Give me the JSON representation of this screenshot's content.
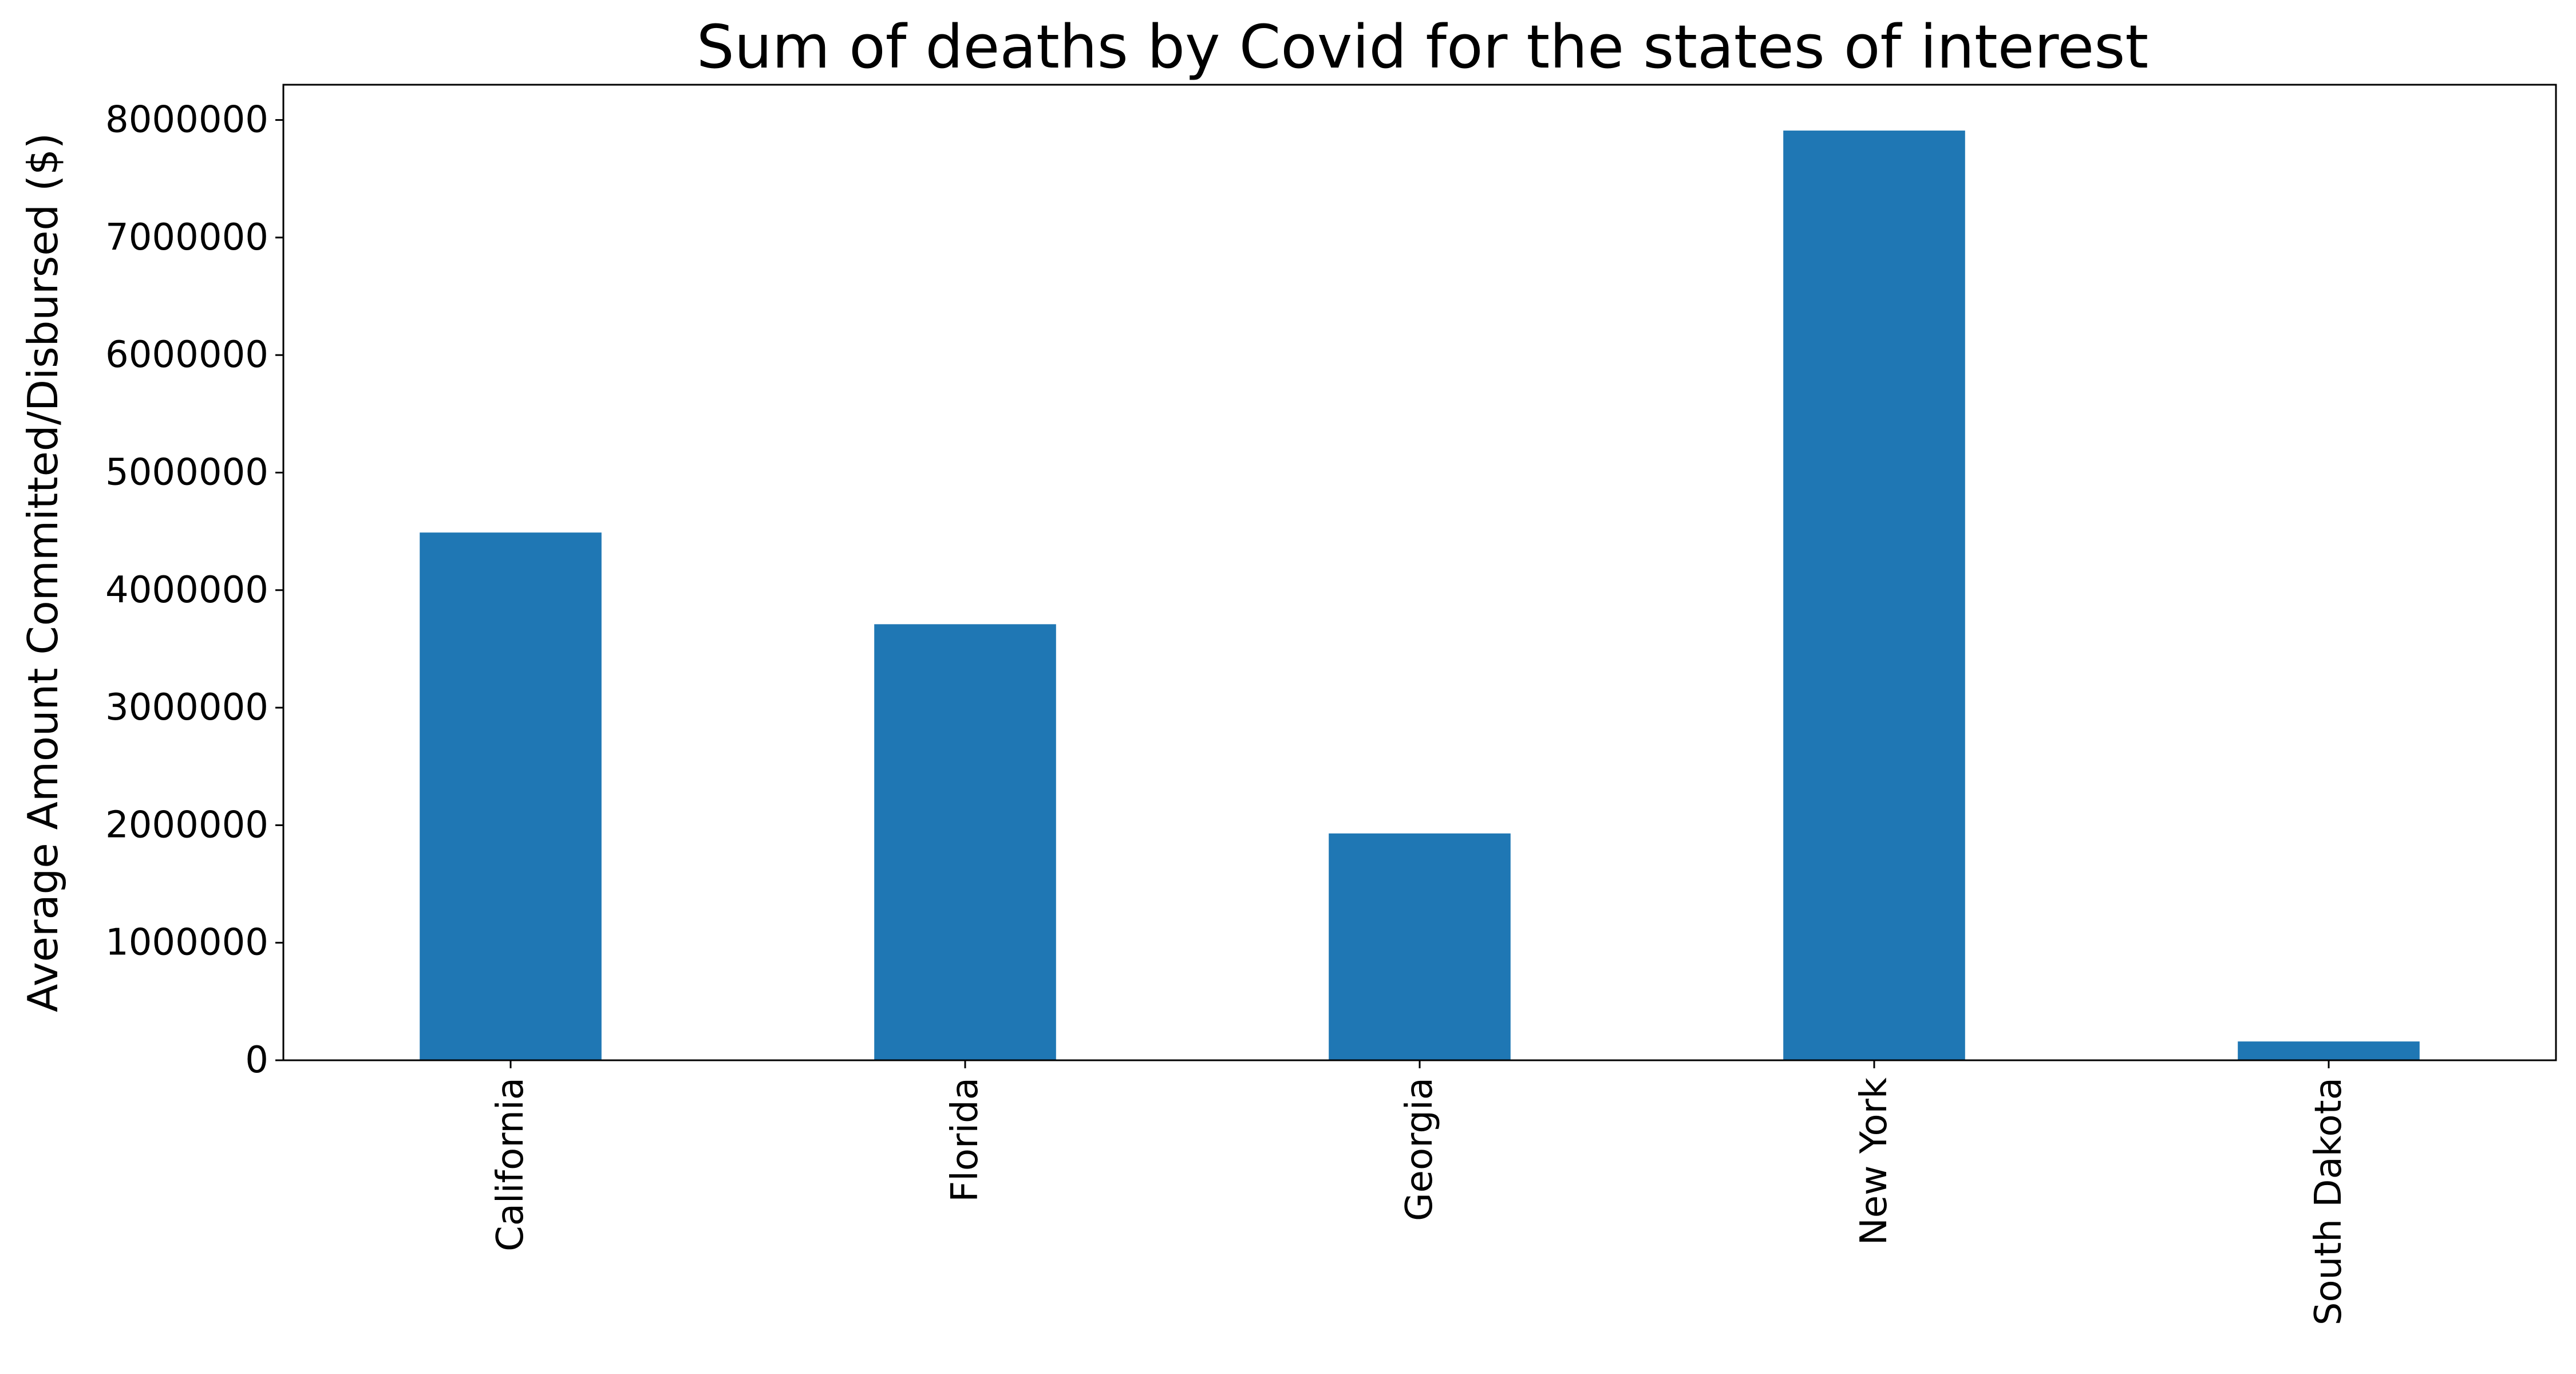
{
  "chart_data": {
    "type": "bar",
    "title": "Sum of deaths by Covid for the states of interest",
    "xlabel": "",
    "ylabel": "Average Amount Committed/Disbursed ($)",
    "categories": [
      "California",
      "Florida",
      "Georgia",
      "New York",
      "South Dakota"
    ],
    "values": [
      4490000,
      3710000,
      1930000,
      7910000,
      160000
    ],
    "ylim": [
      0,
      8300000
    ],
    "yticks": [
      0,
      1000000,
      2000000,
      3000000,
      4000000,
      5000000,
      6000000,
      7000000,
      8000000
    ],
    "ytick_labels": [
      "0",
      "1000000",
      "2000000",
      "3000000",
      "4000000",
      "5000000",
      "6000000",
      "7000000",
      "8000000"
    ],
    "bar_color": "#1f77b4",
    "grid": false,
    "legend": "none"
  }
}
